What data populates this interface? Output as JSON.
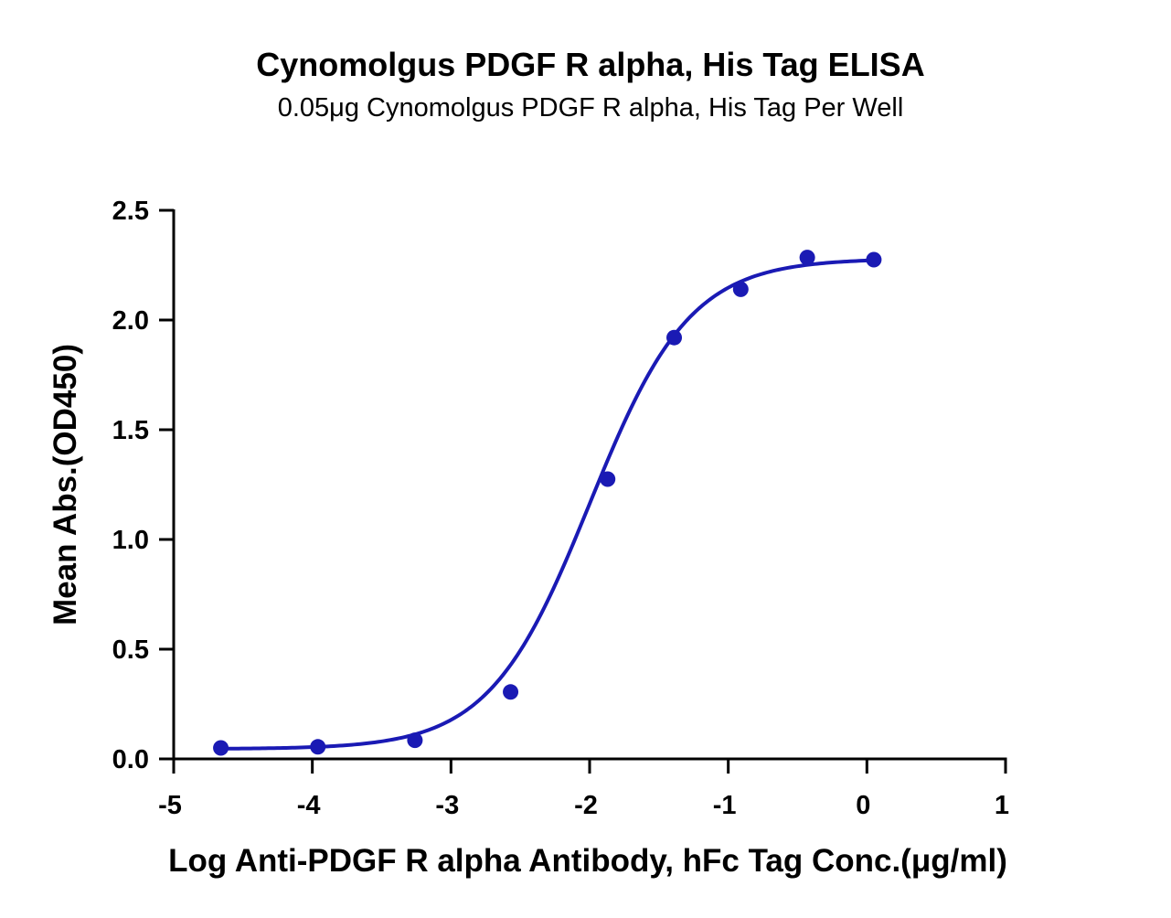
{
  "chart_data": {
    "type": "scatter",
    "title": "Cynomolgus PDGF R alpha, His Tag ELISA",
    "subtitle": "0.05μg Cynomolgus PDGF R alpha, His Tag Per Well",
    "xlabel": "Log Anti-PDGF R alpha Antibody, hFc Tag Conc.(μg/ml)",
    "ylabel": "Mean Abs.(OD450)",
    "xlim": [
      -5,
      1
    ],
    "ylim": [
      0,
      2.5
    ],
    "x_ticks": [
      -5,
      -4,
      -3,
      -2,
      -1,
      0,
      1
    ],
    "y_ticks": [
      0.0,
      0.5,
      1.0,
      1.5,
      2.0,
      2.5
    ],
    "x_tick_labels": [
      "-5",
      "-4",
      "-3",
      "-2",
      "-1",
      "0",
      "1"
    ],
    "y_tick_labels": [
      "0.0",
      "0.5",
      "1.0",
      "1.5",
      "2.0",
      "2.5"
    ],
    "grid": false,
    "color": "#1a1ab4",
    "series": [
      {
        "points": [
          {
            "x": -4.66,
            "y": 0.05
          },
          {
            "x": -3.96,
            "y": 0.055
          },
          {
            "x": -3.26,
            "y": 0.085
          },
          {
            "x": -2.57,
            "y": 0.305
          },
          {
            "x": -1.87,
            "y": 1.275
          },
          {
            "x": -1.39,
            "y": 1.92
          },
          {
            "x": -0.91,
            "y": 2.14
          },
          {
            "x": -0.43,
            "y": 2.285
          },
          {
            "x": 0.05,
            "y": 2.275
          }
        ],
        "fit": {
          "model": "4PL",
          "bottom": 0.045,
          "top": 2.28,
          "logEC50": -2.0,
          "hill": 1.2
        }
      }
    ]
  }
}
